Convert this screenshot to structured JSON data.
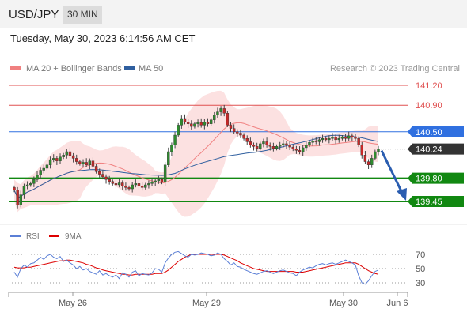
{
  "header": {
    "pair": "USD/JPY",
    "interval": "30 MIN",
    "datetime": "Tuesday, May 30, 2023 6:14:56 AM CET"
  },
  "credit": "Research © 2023 Trading Central",
  "colors": {
    "ma20": "#f08080",
    "ma50": "#2f5f9f",
    "resistance": "#e05050",
    "pivot": "#3070e0",
    "support": "#118811",
    "current": "#333333",
    "rsi": "#5b7fd6",
    "rsi_ma": "#dd0000",
    "band": "#fcdcdc",
    "arrow": "#2a5db0",
    "candle_up": "#2e8b2e",
    "candle_down": "#c62828"
  },
  "chart_data": [
    {
      "type": "candlestick",
      "legend": [
        {
          "label": "MA 20 + Bollinger Bands",
          "color": "#f08080"
        },
        {
          "label": "MA 50",
          "color": "#2f5f9f"
        }
      ],
      "x_ticks": [
        "May 26",
        "May 29",
        "May 30",
        "Jun 6"
      ],
      "price_levels": [
        {
          "value": 141.2,
          "label": "141.20",
          "kind": "resistance"
        },
        {
          "value": 140.9,
          "label": "140.90",
          "kind": "resistance"
        },
        {
          "value": 140.5,
          "label": "140.50",
          "kind": "pivot"
        },
        {
          "value": 140.24,
          "label": "140.24",
          "kind": "current"
        },
        {
          "value": 139.8,
          "label": "139.80",
          "kind": "support"
        },
        {
          "value": 139.45,
          "label": "139.45",
          "kind": "support"
        }
      ],
      "ylim": [
        139.2,
        141.4
      ],
      "forecast": {
        "from": 140.24,
        "to": 139.45,
        "direction": "down"
      },
      "closes": [
        139.62,
        139.4,
        139.55,
        139.68,
        139.7,
        139.72,
        139.78,
        139.85,
        139.92,
        139.95,
        140.0,
        140.08,
        140.1,
        140.06,
        140.12,
        140.15,
        140.2,
        140.14,
        140.1,
        140.05,
        140.02,
        140.04,
        140.0,
        140.06,
        139.98,
        139.9,
        139.86,
        139.82,
        139.78,
        139.75,
        139.72,
        139.7,
        139.73,
        139.68,
        139.66,
        139.64,
        139.7,
        139.72,
        139.68,
        139.66,
        139.7,
        139.72,
        139.74,
        139.76,
        139.78,
        139.74,
        140.0,
        140.2,
        140.3,
        140.45,
        140.6,
        140.7,
        140.65,
        140.62,
        140.58,
        140.62,
        140.64,
        140.6,
        140.65,
        140.62,
        140.68,
        140.75,
        140.8,
        140.85,
        140.78,
        140.6,
        140.55,
        140.5,
        140.48,
        140.45,
        140.4,
        140.35,
        140.3,
        140.28,
        140.25,
        140.32,
        140.35,
        140.3,
        140.28,
        140.25,
        140.28,
        140.3,
        140.32,
        140.3,
        140.27,
        140.24,
        140.22,
        140.2,
        140.26,
        140.3,
        140.34,
        140.36,
        140.35,
        140.38,
        140.4,
        140.38,
        140.4,
        140.42,
        140.38,
        140.4,
        140.42,
        140.4,
        140.44,
        140.42,
        140.4,
        140.3,
        140.15,
        140.05,
        140.0,
        140.1,
        140.2,
        140.24
      ]
    },
    {
      "type": "line",
      "legend": [
        {
          "label": "RSI",
          "color": "#5b7fd6"
        },
        {
          "label": "9MA",
          "color": "#dd0000"
        }
      ],
      "y_ticks": [
        "70",
        "50",
        "30"
      ],
      "ylim": [
        20,
        80
      ],
      "series": [
        {
          "name": "RSI",
          "values": [
            45,
            38,
            50,
            55,
            52,
            57,
            58,
            62,
            66,
            63,
            68,
            70,
            66,
            64,
            67,
            60,
            62,
            58,
            55,
            50,
            53,
            48,
            50,
            46,
            44,
            42,
            47,
            41,
            43,
            40,
            38,
            41,
            36,
            44,
            42,
            38,
            45,
            47,
            40,
            43,
            42,
            41,
            44,
            50,
            49,
            45,
            58,
            65,
            70,
            73,
            74,
            71,
            68,
            66,
            70,
            69,
            70,
            72,
            71,
            70,
            68,
            69,
            72,
            70,
            64,
            60,
            55,
            58,
            53,
            52,
            49,
            47,
            45,
            43,
            42,
            44,
            46,
            47,
            45,
            43,
            45,
            47,
            48,
            46,
            44,
            43,
            40,
            45,
            48,
            50,
            52,
            51,
            54,
            56,
            57,
            55,
            57,
            58,
            56,
            58,
            60,
            62,
            60,
            58,
            55,
            40,
            30,
            28,
            33,
            40,
            46,
            48
          ]
        },
        {
          "name": "9MA",
          "values": [
            52,
            51,
            51,
            51,
            52,
            52,
            53,
            54,
            55,
            56,
            57,
            58,
            59,
            60,
            61,
            61,
            62,
            62,
            61,
            60,
            59,
            58,
            56,
            55,
            53,
            51,
            50,
            48,
            47,
            46,
            45,
            44,
            43,
            42,
            42,
            41,
            41,
            42,
            42,
            42,
            42,
            42,
            42,
            43,
            43,
            43,
            45,
            48,
            52,
            56,
            60,
            63,
            66,
            68,
            70,
            70,
            70,
            70,
            70,
            70,
            70,
            70,
            70,
            70,
            69,
            67,
            65,
            63,
            61,
            58,
            56,
            54,
            52,
            50,
            49,
            48,
            47,
            46,
            46,
            46,
            46,
            46,
            46,
            46,
            46,
            46,
            45,
            45,
            45,
            46,
            47,
            48,
            49,
            50,
            51,
            52,
            53,
            54,
            55,
            56,
            57,
            58,
            58,
            58,
            58,
            56,
            53,
            50,
            47,
            45,
            43,
            42
          ]
        }
      ]
    }
  ]
}
